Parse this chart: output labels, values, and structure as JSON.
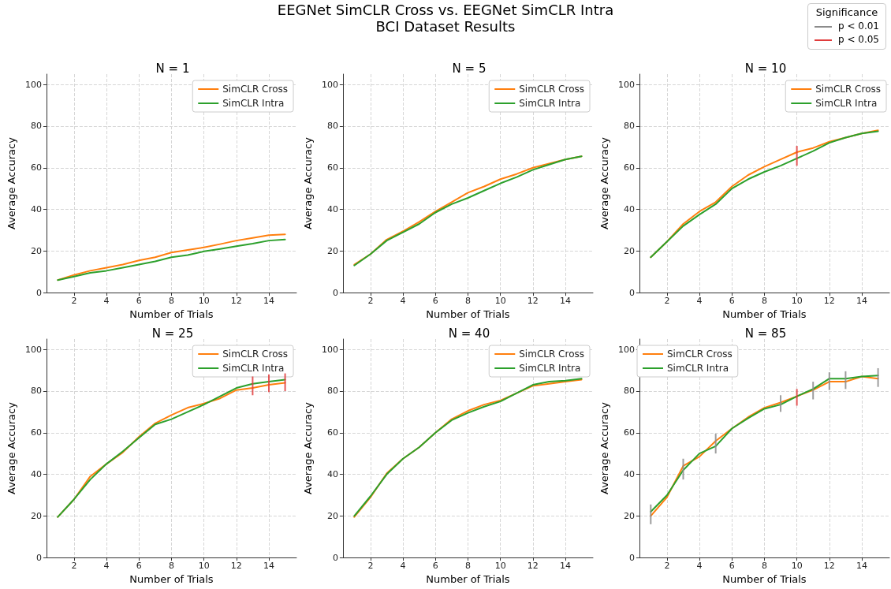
{
  "chart_data": [
    {
      "type": "other",
      "title": "EEGNet SimCLR Cross vs. EEGNet SimCLR Intra",
      "subtitle": "BCI Dataset Results",
      "legend_title": "Significance",
      "legend": "top right",
      "series": [
        {
          "name": "p < 0.01",
          "color": "#8c8c8c"
        },
        {
          "name": "p < 0.05",
          "color": "#e03c3c"
        }
      ]
    },
    {
      "type": "line",
      "title": "N = 1",
      "xlabel": "Number of Trials",
      "ylabel": "Average Accuracy",
      "xlim": [
        0.3,
        15.7
      ],
      "xticks": [
        2,
        4,
        6,
        8,
        10,
        12,
        14
      ],
      "ylim": [
        0,
        105
      ],
      "yticks": [
        0,
        20,
        40,
        60,
        80,
        100
      ],
      "grid": true,
      "legend": "top right",
      "marker": "none",
      "line_style": "solid",
      "x": [
        1,
        2,
        3,
        4,
        5,
        6,
        7,
        8,
        9,
        10,
        11,
        12,
        13,
        14,
        15
      ],
      "series": [
        {
          "name": "SimCLR Cross",
          "color": "#ff7f0e",
          "values": [
            6,
            8.5,
            10.5,
            12,
            13.5,
            15.5,
            17,
            19.3,
            20.5,
            21.7,
            23.3,
            25,
            26.3,
            27.6,
            28
          ]
        },
        {
          "name": "SimCLR Intra",
          "color": "#2ca02c",
          "values": [
            6,
            7.7,
            9.5,
            10.5,
            12,
            13.5,
            15,
            17,
            18,
            19.8,
            21,
            22.3,
            23.5,
            25,
            25.5
          ]
        }
      ]
    },
    {
      "type": "line",
      "title": "N = 5",
      "xlabel": "Number of Trials",
      "ylabel": "Average Accuracy",
      "xlim": [
        0.3,
        15.7
      ],
      "xticks": [
        2,
        4,
        6,
        8,
        10,
        12,
        14
      ],
      "ylim": [
        0,
        105
      ],
      "yticks": [
        0,
        20,
        40,
        60,
        80,
        100
      ],
      "grid": true,
      "legend": "top right",
      "marker": "none",
      "line_style": "solid",
      "x": [
        1,
        2,
        3,
        4,
        5,
        6,
        7,
        8,
        9,
        10,
        11,
        12,
        13,
        14,
        15
      ],
      "series": [
        {
          "name": "SimCLR Cross",
          "color": "#ff7f0e",
          "values": [
            13.5,
            18.5,
            25.5,
            29.5,
            34,
            39,
            43.5,
            48,
            51,
            54.5,
            57,
            60,
            62,
            64,
            65.5
          ]
        },
        {
          "name": "SimCLR Intra",
          "color": "#2ca02c",
          "values": [
            13,
            18.5,
            25,
            29,
            33,
            38.5,
            42.5,
            45.5,
            49,
            52.5,
            55.5,
            59,
            61.5,
            64,
            65.5
          ]
        }
      ]
    },
    {
      "type": "line",
      "title": "N = 10",
      "xlabel": "Number of Trials",
      "ylabel": "Average Accuracy",
      "xlim": [
        0.3,
        15.7
      ],
      "xticks": [
        2,
        4,
        6,
        8,
        10,
        12,
        14
      ],
      "ylim": [
        0,
        105
      ],
      "yticks": [
        0,
        20,
        40,
        60,
        80,
        100
      ],
      "grid": true,
      "legend": "top right",
      "marker": "none",
      "line_style": "solid",
      "x": [
        1,
        2,
        3,
        4,
        5,
        6,
        7,
        8,
        9,
        10,
        11,
        12,
        13,
        14,
        15
      ],
      "series": [
        {
          "name": "SimCLR Cross",
          "color": "#ff7f0e",
          "values": [
            17,
            24.5,
            33,
            39,
            43.5,
            51,
            56.5,
            60.5,
            64,
            67.5,
            69.5,
            72.5,
            74.5,
            76.5,
            78
          ]
        },
        {
          "name": "SimCLR Intra",
          "color": "#2ca02c",
          "values": [
            17,
            24.5,
            32,
            37.5,
            42.5,
            50,
            54.5,
            58,
            61,
            64.5,
            68,
            72,
            74.5,
            76.5,
            77.5
          ]
        },
        {
          "type": "bar",
          "color": "#e03c3c",
          "x": [
            10
          ],
          "base": [
            61
          ],
          "values": [
            9.5
          ]
        }
      ]
    },
    {
      "type": "line",
      "title": "N = 25",
      "xlabel": "Number of Trials",
      "ylabel": "Average Accuracy",
      "xlim": [
        0.3,
        15.7
      ],
      "xticks": [
        2,
        4,
        6,
        8,
        10,
        12,
        14
      ],
      "ylim": [
        0,
        105
      ],
      "yticks": [
        0,
        20,
        40,
        60,
        80,
        100
      ],
      "grid": true,
      "legend": "top right",
      "marker": "none",
      "line_style": "solid",
      "x": [
        1,
        2,
        3,
        4,
        5,
        6,
        7,
        8,
        9,
        10,
        11,
        12,
        13,
        14,
        15
      ],
      "series": [
        {
          "name": "SimCLR Cross",
          "color": "#ff7f0e",
          "values": [
            19.5,
            28,
            39,
            45,
            50.5,
            58,
            64.5,
            68.5,
            72,
            74,
            76.5,
            80.5,
            81.5,
            83,
            84
          ]
        },
        {
          "name": "SimCLR Intra",
          "color": "#2ca02c",
          "values": [
            19.5,
            28,
            37.5,
            45,
            51,
            57.5,
            64,
            66.5,
            70,
            73.5,
            77.5,
            81.5,
            83.5,
            84.5,
            85.5
          ]
        },
        {
          "type": "bar",
          "color": "#e03c3c",
          "x": [
            13,
            14,
            15
          ],
          "base": [
            78,
            79.5,
            80
          ],
          "values": [
            9,
            8.5,
            8.5
          ]
        }
      ]
    },
    {
      "type": "line",
      "title": "N = 40",
      "xlabel": "Number of Trials",
      "ylabel": "Average Accuracy",
      "xlim": [
        0.3,
        15.7
      ],
      "xticks": [
        2,
        4,
        6,
        8,
        10,
        12,
        14
      ],
      "ylim": [
        0,
        105
      ],
      "yticks": [
        0,
        20,
        40,
        60,
        80,
        100
      ],
      "grid": true,
      "legend": "top right",
      "marker": "none",
      "line_style": "solid",
      "x": [
        1,
        2,
        3,
        4,
        5,
        6,
        7,
        8,
        9,
        10,
        11,
        12,
        13,
        14,
        15
      ],
      "series": [
        {
          "name": "SimCLR Cross",
          "color": "#ff7f0e",
          "values": [
            19.5,
            29,
            40.5,
            47.5,
            53,
            60,
            66.5,
            70.5,
            73.5,
            75.5,
            79,
            82.5,
            83.5,
            84.5,
            85.5
          ]
        },
        {
          "name": "SimCLR Intra",
          "color": "#2ca02c",
          "values": [
            20,
            29.5,
            40,
            47.5,
            53,
            60,
            66,
            69.5,
            72.5,
            75,
            79,
            83,
            84.5,
            85,
            86
          ]
        }
      ]
    },
    {
      "type": "line",
      "title": "N = 85",
      "xlabel": "Number of Trials",
      "ylabel": "Average Accuracy",
      "xlim": [
        0.3,
        15.7
      ],
      "xticks": [
        2,
        4,
        6,
        8,
        10,
        12,
        14
      ],
      "ylim": [
        0,
        105
      ],
      "yticks": [
        0,
        20,
        40,
        60,
        80,
        100
      ],
      "grid": true,
      "legend": "top left",
      "marker": "none",
      "line_style": "solid",
      "x": [
        1,
        2,
        3,
        4,
        5,
        6,
        7,
        8,
        9,
        10,
        11,
        12,
        13,
        14,
        15
      ],
      "series": [
        {
          "name": "SimCLR Cross",
          "color": "#ff7f0e",
          "values": [
            20,
            29,
            44,
            48.5,
            56,
            62,
            67.5,
            72,
            74.5,
            77.5,
            80.5,
            84.5,
            84.5,
            87,
            86
          ]
        },
        {
          "name": "SimCLR Intra",
          "color": "#2ca02c",
          "values": [
            22,
            30,
            42,
            50,
            53.5,
            62,
            67,
            71.5,
            73.5,
            77.5,
            81,
            86,
            86,
            87,
            87.5
          ]
        },
        {
          "type": "bar",
          "color": "#8c8c8c",
          "x": [
            1,
            3,
            5,
            9,
            11,
            12,
            13,
            15
          ],
          "base": [
            16,
            37.5,
            50,
            70,
            76,
            80.5,
            81,
            82
          ],
          "values": [
            9.5,
            10,
            9.5,
            8,
            8.5,
            8.5,
            8.5,
            9
          ]
        },
        {
          "type": "bar",
          "color": "#e03c3c",
          "x": [
            10
          ],
          "base": [
            73
          ],
          "values": [
            8
          ]
        }
      ]
    }
  ]
}
